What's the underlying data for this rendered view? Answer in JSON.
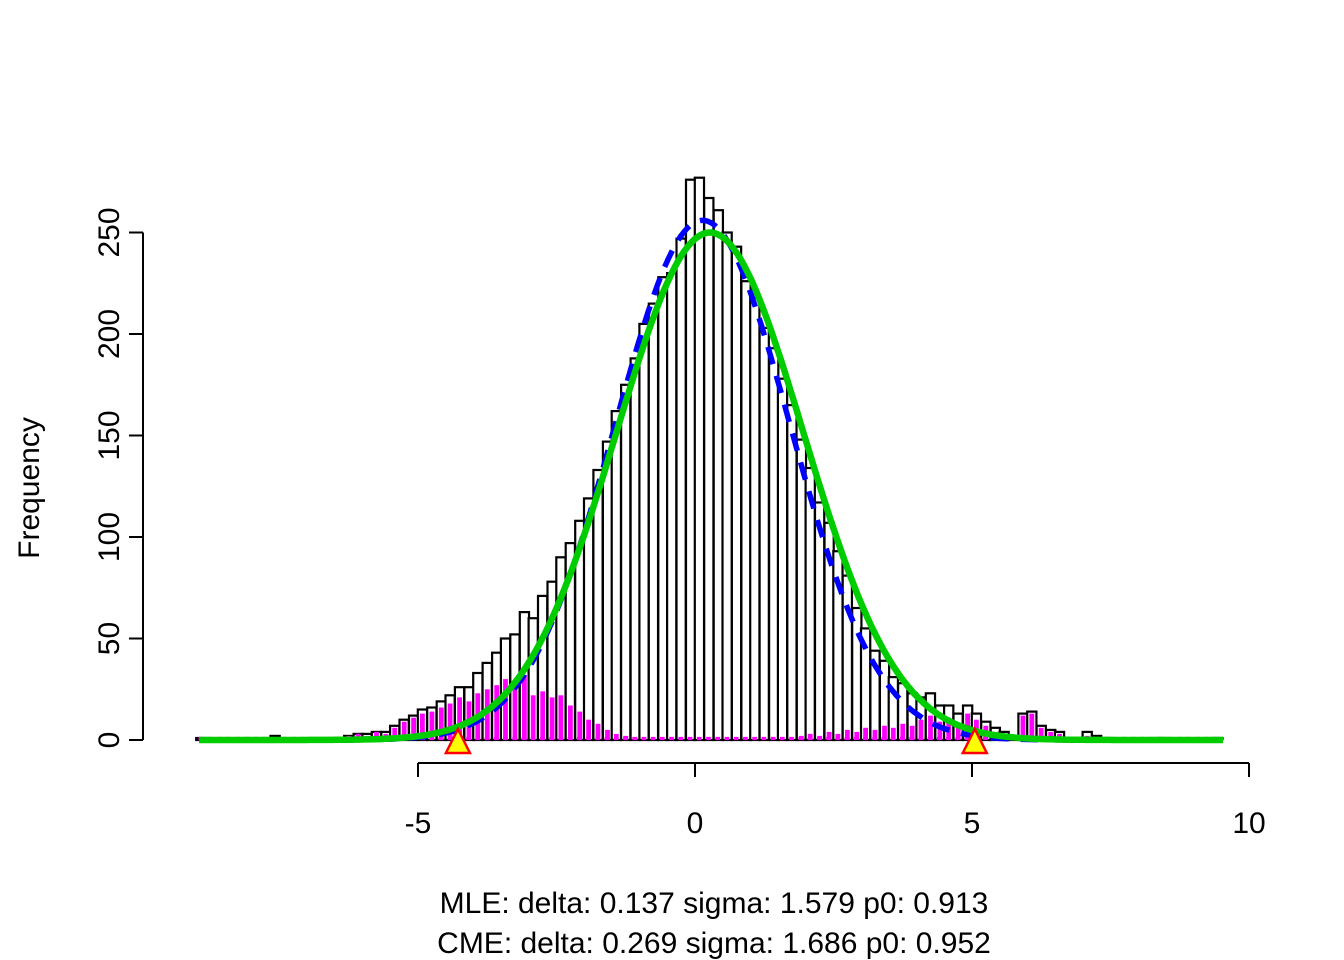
{
  "figure": {
    "background": "#ffffff",
    "ylabel": "Frequency",
    "caption_line1": "MLE: delta: 0.137 sigma: 1.579 p0: 0.913",
    "caption_line2": "CME: delta: 0.269 sigma: 1.686 p0: 0.952"
  },
  "chart_data": {
    "type": "bar",
    "subtype": "histogram-with-fitted-curves",
    "title": "",
    "xlabel": "",
    "ylabel": "Frequency",
    "x_ticks": [
      -5,
      0,
      5,
      10
    ],
    "y_ticks": [
      0,
      50,
      100,
      150,
      200,
      250
    ],
    "xlim": [
      -8.97,
      9.55
    ],
    "ylim": [
      0,
      280
    ],
    "grid": false,
    "legend": "none",
    "bin_width": 0.167,
    "histogram_series": [
      {
        "name": "full-sample-histogram",
        "fill": "#ffffff",
        "border": "#000000"
      },
      {
        "name": "outlier-histogram",
        "fill": "#ff00ff",
        "border": "#ff00ff"
      }
    ],
    "bins_note": "each bin = [center_x, total_count, outlier_count]",
    "bins": [
      [
        -8.92,
        1,
        0
      ],
      [
        -7.58,
        2,
        1
      ],
      [
        -6.42,
        1,
        1
      ],
      [
        -6.25,
        2,
        2
      ],
      [
        -6.08,
        3,
        3
      ],
      [
        -5.92,
        3,
        2
      ],
      [
        -5.75,
        4,
        4
      ],
      [
        -5.58,
        4,
        3
      ],
      [
        -5.42,
        7,
        6
      ],
      [
        -5.25,
        10,
        9
      ],
      [
        -5.08,
        12,
        11
      ],
      [
        -4.92,
        15,
        13
      ],
      [
        -4.75,
        16,
        14
      ],
      [
        -4.58,
        19,
        16
      ],
      [
        -4.42,
        22,
        18
      ],
      [
        -4.25,
        26,
        21
      ],
      [
        -4.08,
        26,
        19
      ],
      [
        -3.92,
        33,
        23
      ],
      [
        -3.75,
        38,
        25
      ],
      [
        -3.58,
        43,
        27
      ],
      [
        -3.42,
        50,
        30
      ],
      [
        -3.25,
        52,
        27
      ],
      [
        -3.08,
        63,
        32
      ],
      [
        -2.92,
        60,
        22
      ],
      [
        -2.75,
        71,
        24
      ],
      [
        -2.58,
        78,
        21
      ],
      [
        -2.42,
        90,
        22
      ],
      [
        -2.25,
        97,
        17
      ],
      [
        -2.08,
        108,
        14
      ],
      [
        -1.92,
        119,
        10
      ],
      [
        -1.75,
        133,
        8
      ],
      [
        -1.58,
        147,
        5
      ],
      [
        -1.42,
        162,
        3
      ],
      [
        -1.25,
        175,
        2
      ],
      [
        -1.08,
        188,
        1
      ],
      [
        -0.92,
        205,
        0
      ],
      [
        -0.75,
        215,
        0
      ],
      [
        -0.58,
        228,
        0
      ],
      [
        -0.42,
        230,
        0
      ],
      [
        -0.25,
        247,
        0
      ],
      [
        -0.08,
        276,
        0
      ],
      [
        0.08,
        277,
        0
      ],
      [
        0.25,
        267,
        0
      ],
      [
        0.42,
        261,
        0
      ],
      [
        0.58,
        250,
        0
      ],
      [
        0.75,
        243,
        0
      ],
      [
        0.92,
        226,
        0
      ],
      [
        1.08,
        218,
        0
      ],
      [
        1.25,
        203,
        0
      ],
      [
        1.42,
        193,
        0
      ],
      [
        1.58,
        178,
        0
      ],
      [
        1.75,
        165,
        0
      ],
      [
        1.92,
        148,
        2
      ],
      [
        2.08,
        134,
        3
      ],
      [
        2.25,
        117,
        2
      ],
      [
        2.42,
        107,
        4
      ],
      [
        2.58,
        93,
        3
      ],
      [
        2.75,
        81,
        5
      ],
      [
        2.92,
        65,
        4
      ],
      [
        3.08,
        55,
        6
      ],
      [
        3.25,
        44,
        5
      ],
      [
        3.42,
        39,
        7
      ],
      [
        3.58,
        31,
        6
      ],
      [
        3.75,
        28,
        8
      ],
      [
        3.92,
        23,
        7
      ],
      [
        4.08,
        21,
        10
      ],
      [
        4.25,
        23,
        12
      ],
      [
        4.42,
        17,
        9
      ],
      [
        4.58,
        17,
        11
      ],
      [
        4.75,
        13,
        8
      ],
      [
        4.92,
        17,
        13
      ],
      [
        5.08,
        13,
        10
      ],
      [
        5.25,
        9,
        7
      ],
      [
        5.42,
        6,
        4
      ],
      [
        5.58,
        4,
        3
      ],
      [
        5.75,
        2,
        1
      ],
      [
        5.92,
        13,
        12
      ],
      [
        6.08,
        14,
        13
      ],
      [
        6.25,
        7,
        6
      ],
      [
        6.42,
        5,
        4
      ],
      [
        6.58,
        4,
        3
      ],
      [
        7.08,
        4,
        2
      ],
      [
        7.25,
        2,
        1
      ],
      [
        8.42,
        1,
        1
      ],
      [
        9.42,
        1,
        1
      ]
    ],
    "curves": [
      {
        "name": "MLE fit",
        "color": "#0000ff",
        "style": "dashed",
        "delta": 0.137,
        "sigma": 1.579,
        "p0": 0.913,
        "peak_count": 256
      },
      {
        "name": "CME fit",
        "color": "#00cd00",
        "style": "solid",
        "delta": 0.269,
        "sigma": 1.686,
        "p0": 0.952,
        "peak_count": 250
      }
    ],
    "markers": {
      "shape": "triangle-up",
      "fill": "#ffff00",
      "border": "#ff0000",
      "x_positions": [
        -4.28,
        5.05
      ]
    },
    "caption": [
      "MLE: delta: 0.137 sigma: 1.579 p0: 0.913",
      "CME: delta: 0.269 sigma: 1.686 p0: 0.952"
    ]
  }
}
